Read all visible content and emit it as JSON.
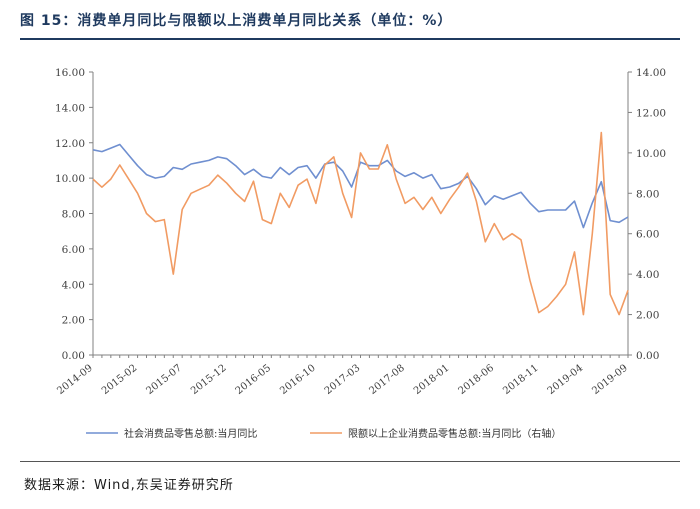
{
  "header": {
    "title": "图 15：消费单月同比与限额以上消费单月同比关系（单位：%）"
  },
  "footer": {
    "source": "数据来源：Wind,东吴证券研究所"
  },
  "colors": {
    "series_left": "#6f8fd0",
    "series_right": "#f19b63",
    "title": "#1f3a5f"
  },
  "chart_data": {
    "type": "line",
    "title": "图 15：消费单月同比与限额以上消费单月同比关系（单位：%）",
    "x": [
      "2014-09",
      "2014-10",
      "2014-11",
      "2014-12",
      "2015-01",
      "2015-02",
      "2015-03",
      "2015-04",
      "2015-05",
      "2015-06",
      "2015-07",
      "2015-08",
      "2015-09",
      "2015-10",
      "2015-11",
      "2015-12",
      "2016-01",
      "2016-02",
      "2016-03",
      "2016-04",
      "2016-05",
      "2016-06",
      "2016-07",
      "2016-08",
      "2016-09",
      "2016-10",
      "2016-11",
      "2016-12",
      "2017-01",
      "2017-02",
      "2017-03",
      "2017-04",
      "2017-05",
      "2017-06",
      "2017-07",
      "2017-08",
      "2017-09",
      "2017-10",
      "2017-11",
      "2017-12",
      "2018-01",
      "2018-02",
      "2018-03",
      "2018-04",
      "2018-05",
      "2018-06",
      "2018-07",
      "2018-08",
      "2018-09",
      "2018-10",
      "2018-11",
      "2018-12",
      "2019-01",
      "2019-02",
      "2019-03",
      "2019-04",
      "2019-05",
      "2019-06",
      "2019-07",
      "2019-08",
      "2019-09"
    ],
    "x_tick_labels": [
      "2014-09",
      "2015-02",
      "2015-07",
      "2015-12",
      "2016-05",
      "2016-10",
      "2017-03",
      "2017-08",
      "2018-01",
      "2018-06",
      "2018-11",
      "2019-04",
      "2019-09"
    ],
    "left_axis": {
      "ylim": [
        0,
        16
      ],
      "ticks": [
        "0.00",
        "2.00",
        "4.00",
        "6.00",
        "8.00",
        "10.00",
        "12.00",
        "14.00",
        "16.00"
      ]
    },
    "right_axis": {
      "ylim": [
        0,
        14
      ],
      "ticks": [
        "0.00",
        "2.00",
        "4.00",
        "6.00",
        "8.00",
        "10.00",
        "12.00",
        "14.00"
      ]
    },
    "legend_position": "bottom",
    "grid": false,
    "series": [
      {
        "name": "社会消费品零售总额:当月同比",
        "axis": "left",
        "values": [
          11.6,
          11.5,
          11.7,
          11.9,
          11.3,
          10.7,
          10.2,
          10.0,
          10.1,
          10.6,
          10.5,
          10.8,
          10.9,
          11.0,
          11.2,
          11.1,
          10.7,
          10.2,
          10.5,
          10.1,
          10.0,
          10.6,
          10.2,
          10.6,
          10.7,
          10.0,
          10.8,
          10.9,
          10.4,
          9.5,
          10.9,
          10.7,
          10.7,
          11.0,
          10.4,
          10.1,
          10.3,
          10.0,
          10.2,
          9.4,
          9.5,
          9.7,
          10.1,
          9.4,
          8.5,
          9.0,
          8.8,
          9.0,
          9.2,
          8.6,
          8.1,
          8.2,
          8.2,
          8.2,
          8.7,
          7.2,
          8.6,
          9.8,
          7.6,
          7.5,
          7.8
        ]
      },
      {
        "name": "限额以上企业消费品零售总额:当月同比（右轴）",
        "axis": "right",
        "values": [
          8.7,
          8.3,
          8.7,
          9.4,
          8.7,
          8.0,
          7.0,
          6.6,
          6.7,
          4.0,
          7.2,
          8.0,
          8.2,
          8.4,
          8.9,
          8.5,
          8.0,
          7.6,
          8.6,
          6.7,
          6.5,
          8.0,
          7.3,
          8.4,
          8.7,
          7.5,
          9.4,
          9.8,
          8.0,
          6.8,
          10.0,
          9.2,
          9.2,
          10.4,
          8.7,
          7.5,
          7.8,
          7.2,
          7.8,
          7.0,
          7.7,
          8.3,
          9.0,
          7.6,
          5.6,
          6.5,
          5.7,
          6.0,
          5.7,
          3.7,
          2.1,
          2.4,
          2.9,
          3.5,
          5.1,
          2.0,
          6.0,
          11.0,
          3.0,
          2.0,
          3.2
        ]
      }
    ]
  }
}
